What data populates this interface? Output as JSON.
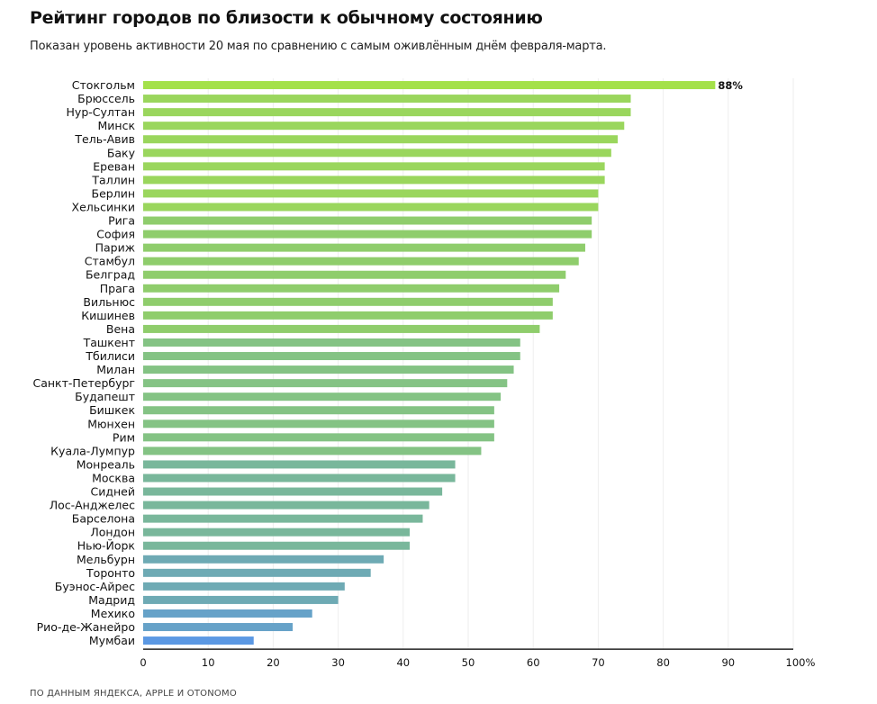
{
  "header": {
    "title": "Рейтинг городов по близости к обычному состоянию",
    "subtitle": "Показан уровень активности 20 мая по сравнению с самым оживлённым днём февраля-марта."
  },
  "footer": {
    "source": "ПО ДАННЫМ ЯНДЕКСА, APPLE И OTONOMO"
  },
  "chart_data": {
    "type": "bar",
    "orientation": "horizontal",
    "title": "Рейтинг городов по близости к обычному состоянию",
    "subtitle": "Показан уровень активности 20 мая по сравнению с самым оживлённым днём февраля-марта.",
    "xlabel": "",
    "ylabel": "",
    "xlim": [
      0,
      100
    ],
    "x_ticks": [
      0,
      10,
      20,
      30,
      40,
      50,
      60,
      70,
      80,
      90,
      100
    ],
    "x_tick_labels": [
      "0",
      "10",
      "20",
      "30",
      "40",
      "50",
      "60",
      "70",
      "80",
      "90",
      "100%"
    ],
    "grid": "vertical",
    "categories": [
      "Стокгольм",
      "Брюссель",
      "Нур-Султан",
      "Минск",
      "Тель-Авив",
      "Баку",
      "Ереван",
      "Таллин",
      "Берлин",
      "Хельсинки",
      "Рига",
      "София",
      "Париж",
      "Стамбул",
      "Белград",
      "Прага",
      "Вильнюс",
      "Кишинев",
      "Вена",
      "Ташкент",
      "Тбилиси",
      "Милан",
      "Санкт-Петербург",
      "Будапешт",
      "Бишкек",
      "Мюнхен",
      "Рим",
      "Куала-Лумпур",
      "Монреаль",
      "Москва",
      "Сидней",
      "Лос-Анджелес",
      "Барселона",
      "Лондон",
      "Нью-Йорк",
      "Мельбурн",
      "Торонто",
      "Буэнос-Айрес",
      "Мадрид",
      "Мехико",
      "Рио-де-Жанейро",
      "Мумбаи"
    ],
    "values": [
      88,
      75,
      75,
      74,
      73,
      72,
      71,
      71,
      70,
      70,
      69,
      69,
      68,
      67,
      65,
      64,
      63,
      63,
      61,
      58,
      58,
      57,
      56,
      55,
      54,
      54,
      54,
      52,
      48,
      48,
      46,
      44,
      43,
      41,
      41,
      37,
      35,
      31,
      30,
      26,
      23,
      17
    ],
    "colors": [
      "#a4e14a",
      "#9ad65d",
      "#9ad65d",
      "#9ad65d",
      "#9ad65d",
      "#9ad65d",
      "#9ad65d",
      "#9ad65d",
      "#9ad65d",
      "#9ad65d",
      "#8fcd6c",
      "#8fcd6c",
      "#8fcd6c",
      "#8fcd6c",
      "#8fcd6c",
      "#8fcd6c",
      "#8fcd6c",
      "#8fcd6c",
      "#8fcd6c",
      "#84c384",
      "#84c384",
      "#84c384",
      "#84c384",
      "#84c384",
      "#84c384",
      "#84c384",
      "#84c384",
      "#84c384",
      "#79b79b",
      "#79b79b",
      "#79b79b",
      "#79b79b",
      "#79b79b",
      "#79b79b",
      "#79b79b",
      "#6eaab4",
      "#6eaab4",
      "#6eaab4",
      "#6eaab4",
      "#66a2c8",
      "#66a2c8",
      "#5b98e3"
    ],
    "data_labels": [
      {
        "category": "Стокгольм",
        "text": "88%"
      }
    ]
  }
}
